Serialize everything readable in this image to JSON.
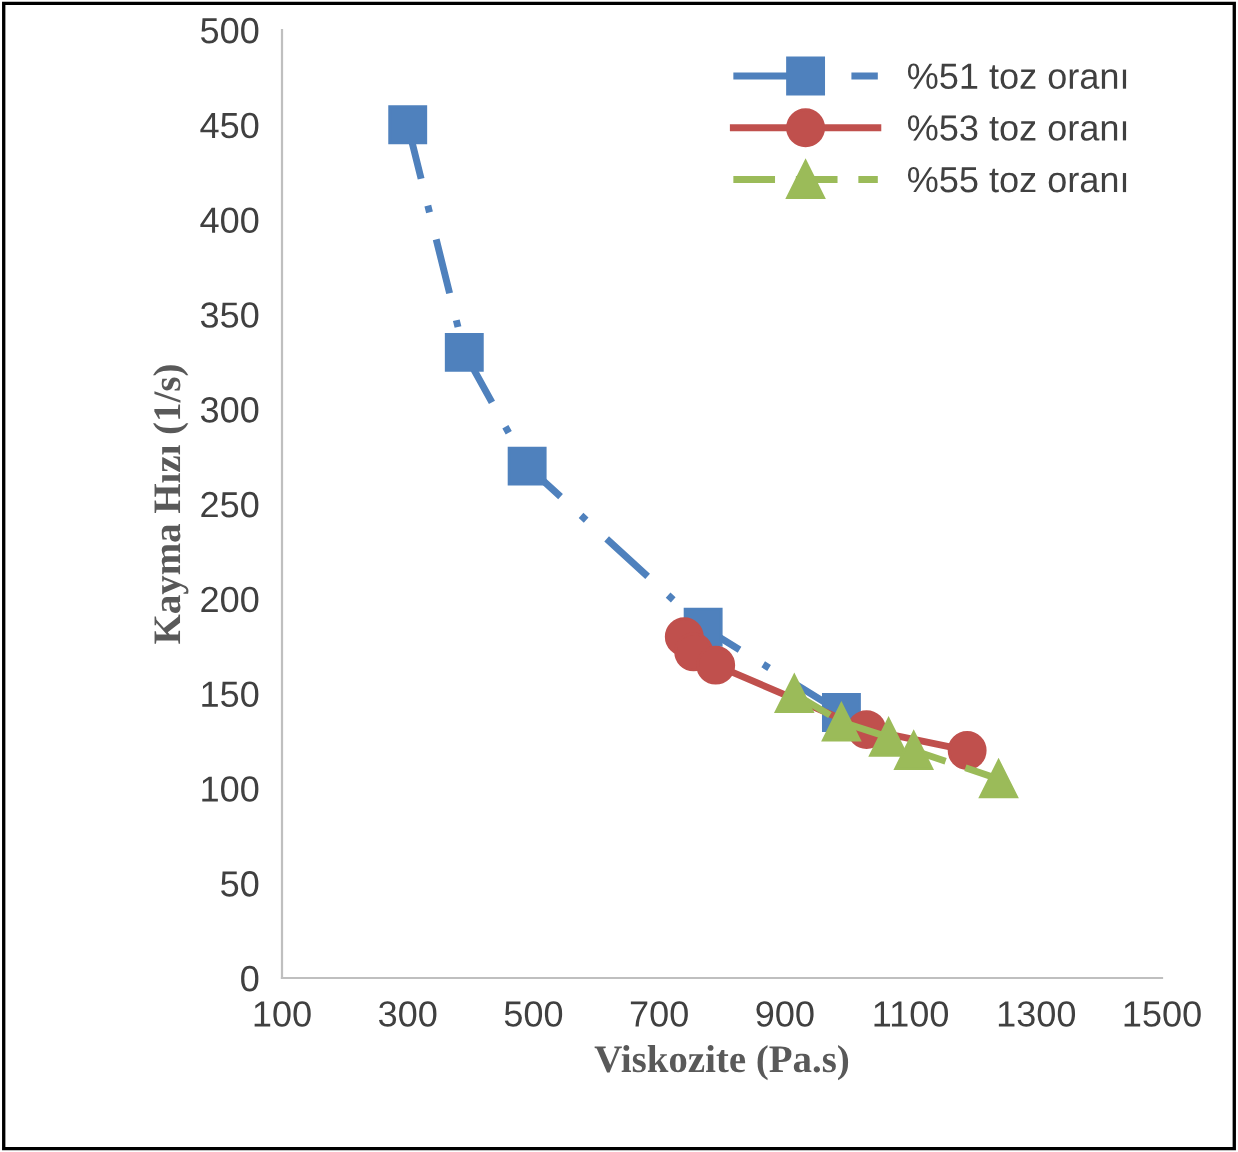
{
  "chart_data": {
    "type": "line",
    "xlabel": "Viskozite (Pa.s)",
    "ylabel": "Kayma Hızı (1/s)",
    "xlim": [
      100,
      1500
    ],
    "xticks": [
      100,
      300,
      500,
      700,
      900,
      1100,
      1300,
      1500
    ],
    "ylim": [
      0,
      500
    ],
    "yticks": [
      0,
      50,
      100,
      150,
      200,
      250,
      300,
      350,
      400,
      450,
      500
    ],
    "grid": false,
    "legend": "top right",
    "series": [
      {
        "name": "%51 toz oranı",
        "color": "#4f81bd",
        "marker": "square",
        "line_style": "dashdot",
        "x": [
          300,
          390,
          490,
          770,
          990
        ],
        "values": [
          450,
          330,
          270,
          185,
          140
        ]
      },
      {
        "name": "%53 toz oranı",
        "color": "#c0504d",
        "marker": "circle",
        "line_style": "solid",
        "x": [
          740,
          755,
          790,
          1030,
          1190
        ],
        "values": [
          180,
          172,
          165,
          131,
          120
        ]
      },
      {
        "name": "%55 toz oranı",
        "color": "#9bbb59",
        "marker": "triangle",
        "line_style": "dashed",
        "x": [
          915,
          990,
          1065,
          1105,
          1240
        ],
        "values": [
          150,
          135,
          127,
          120,
          105
        ]
      }
    ]
  }
}
